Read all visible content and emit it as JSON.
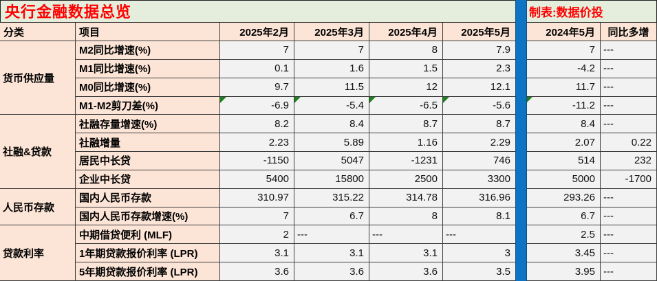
{
  "title": "央行金融数据总览",
  "credit": "制表:数据价投",
  "colors": {
    "title_bg": "#e5eedc",
    "label_bg": "#fce4d6",
    "value_bg": "#f2f2f2",
    "divider_blue": "#0d74c4",
    "accent_red": "#ff0000",
    "flag_green": "#1e801e",
    "grid_line": "#3b3b3b"
  },
  "header": {
    "category": "分类",
    "item": "项目",
    "months": [
      "2025年2月",
      "2025年3月",
      "2025年4月",
      "2025年5月"
    ],
    "prev_year": "2024年5月",
    "yoy": "同比多增"
  },
  "groups": [
    {
      "category": "货币供应量",
      "rows": [
        {
          "item": "M2同比增速(%)",
          "values": [
            "7",
            "7",
            "8",
            "7.9"
          ],
          "prev": "7",
          "yoy": "---",
          "flagged": false
        },
        {
          "item": "M1同比增速(%)",
          "values": [
            "0.1",
            "1.6",
            "1.5",
            "2.3"
          ],
          "prev": "-4.2",
          "yoy": "---",
          "flagged": false
        },
        {
          "item": "M0同比增速(%)",
          "values": [
            "9.7",
            "11.5",
            "12",
            "12.1"
          ],
          "prev": "11.7",
          "yoy": "---",
          "flagged": false
        },
        {
          "item": "M1-M2剪刀差(%)",
          "values": [
            "-6.9",
            "-5.4",
            "-6.5",
            "-5.6"
          ],
          "prev": "-11.2",
          "yoy": "---",
          "flagged": true
        }
      ]
    },
    {
      "category": "社融&贷款",
      "rows": [
        {
          "item": "社融存量增速(%)",
          "values": [
            "8.2",
            "8.4",
            "8.7",
            "8.7"
          ],
          "prev": "8.4",
          "yoy": "---",
          "flagged": false
        },
        {
          "item": "社融增量",
          "values": [
            "2.23",
            "5.89",
            "1.16",
            "2.29"
          ],
          "prev": "2.07",
          "yoy": "0.22",
          "flagged": false
        },
        {
          "item": "居民中长贷",
          "values": [
            "-1150",
            "5047",
            "-1231",
            "746"
          ],
          "prev": "514",
          "yoy": "232",
          "flagged": false
        },
        {
          "item": "企业中长贷",
          "values": [
            "5400",
            "15800",
            "2500",
            "3300"
          ],
          "prev": "5000",
          "yoy": "-1700",
          "flagged": false
        }
      ]
    },
    {
      "category": "人民币存款",
      "rows": [
        {
          "item": "国内人民币存款",
          "values": [
            "310.97",
            "315.22",
            "314.78",
            "316.96"
          ],
          "prev": "293.26",
          "yoy": "---",
          "flagged": false
        },
        {
          "item": "国内人民币存款增速(%)",
          "values": [
            "7",
            "6.7",
            "8",
            "8.1"
          ],
          "prev": "6.7",
          "yoy": "---",
          "flagged": false
        }
      ]
    },
    {
      "category": "贷款利率",
      "rows": [
        {
          "item": "中期借贷便利 (MLF)",
          "values": [
            "2",
            "---",
            "---",
            "---"
          ],
          "prev": "2.5",
          "yoy": "---",
          "flagged": false
        },
        {
          "item": "1年期贷款报价利率 (LPR)",
          "values": [
            "3.1",
            "3.1",
            "3.1",
            "3"
          ],
          "prev": "3.45",
          "yoy": "---",
          "flagged": false
        },
        {
          "item": "5年期贷款报价利率 (LPR)",
          "values": [
            "3.6",
            "3.6",
            "3.6",
            "3.5"
          ],
          "prev": "3.95",
          "yoy": "---",
          "flagged": false
        }
      ]
    }
  ]
}
